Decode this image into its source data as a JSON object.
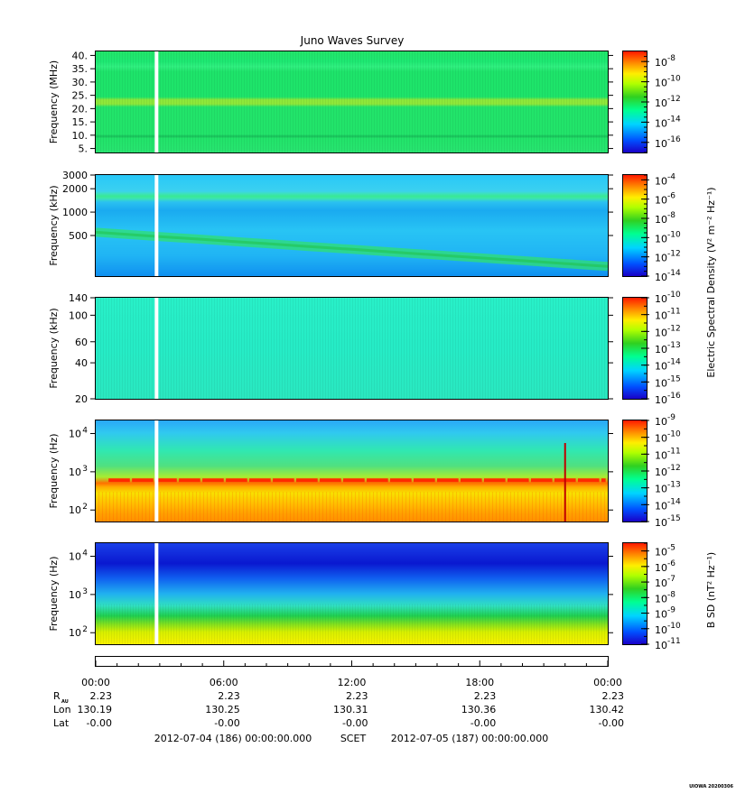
{
  "title": "Juno Waves Survey",
  "footer_mark": "UIOWA 20200306",
  "ephemeris": {
    "time_labels": [
      "00:00",
      "06:00",
      "12:00",
      "18:00",
      "00:00"
    ],
    "rows": [
      {
        "label": "R",
        "sub": "AU",
        "values": [
          "2.23",
          "2.23",
          "2.23",
          "2.23",
          "2.23"
        ]
      },
      {
        "label": "Lon",
        "sub": "",
        "values": [
          "130.19",
          "130.25",
          "130.31",
          "130.36",
          "130.42"
        ]
      },
      {
        "label": "Lat",
        "sub": "",
        "values": [
          "-0.00",
          "-0.00",
          "-0.00",
          "-0.00",
          "-0.00"
        ]
      }
    ],
    "start_date": "2012-07-04 (186) 00:00:00.000",
    "scet": "SCET",
    "end_date": "2012-07-05 (187) 00:00:00.000"
  },
  "colorbar_labels": {
    "electric": "Electric Spectral Density (V² m⁻² Hz⁻¹)",
    "magnetic": "B SD (nT² Hz⁻¹)"
  },
  "chart_data": [
    {
      "type": "heatmap",
      "ylabel": "Frequency (MHz)",
      "y_ticks": [
        "40.",
        "35.",
        "30.",
        "25.",
        "20.",
        "15.",
        "10.",
        "5."
      ],
      "y_tick_values": [
        40,
        35,
        30,
        25,
        20,
        15,
        10,
        5
      ],
      "ylim": [
        3.5,
        41.5
      ],
      "y_scale": "linear",
      "colorbar": {
        "base": "10",
        "exponents": [
          "-8",
          "-10",
          "-12",
          "-14",
          "-16"
        ],
        "range_exp": [
          -17,
          -7
        ]
      },
      "features": "uniform background with bright line near 21 MHz and faint line near 9 MHz"
    },
    {
      "type": "heatmap",
      "ylabel": "Frequency (kHz)",
      "y_ticks": [
        "3000",
        "2000",
        "1000",
        "500"
      ],
      "y_tick_values": [
        3000,
        2000,
        1000,
        500
      ],
      "ylim": [
        150,
        3000
      ],
      "y_scale": "log",
      "colorbar": {
        "base": "10",
        "exponents": [
          "-4",
          "-6",
          "-8",
          "-10",
          "-12",
          "-14"
        ],
        "range_exp": [
          -14,
          -3.5
        ]
      },
      "features": "band near 1600 kHz; emission near 550 kHz descending to ~200 kHz over the day"
    },
    {
      "type": "heatmap",
      "ylabel": "Frequency (kHz)",
      "y_ticks": [
        "140",
        "100",
        "60",
        "40",
        "20"
      ],
      "y_tick_values": [
        140,
        100,
        60,
        40,
        20
      ],
      "ylim": [
        20,
        140
      ],
      "y_scale": "log",
      "colorbar": {
        "base": "10",
        "exponents": [
          "-10",
          "-11",
          "-12",
          "-13",
          "-14",
          "-15",
          "-16"
        ],
        "range_exp": [
          -16,
          -10
        ]
      },
      "features": "uniform background"
    },
    {
      "type": "heatmap",
      "ylabel": "Frequency (Hz)",
      "y_ticks": [
        "10",
        "10",
        "10"
      ],
      "y_tick_exponents": [
        "4",
        "3",
        "2"
      ],
      "y_tick_values": [
        10000,
        1000,
        100
      ],
      "ylim": [
        50,
        22000
      ],
      "y_scale": "log",
      "colorbar": {
        "base": "10",
        "exponents": [
          "-9",
          "-10",
          "-11",
          "-12",
          "-13",
          "-14",
          "-15"
        ],
        "range_exp": [
          -15,
          -9
        ]
      },
      "features": "strong interference line near 600 Hz; intense low-frequency noise below 300 Hz; spike near 22:00"
    },
    {
      "type": "heatmap",
      "ylabel": "Frequency (Hz)",
      "y_ticks": [
        "10",
        "10",
        "10"
      ],
      "y_tick_exponents": [
        "4",
        "3",
        "2"
      ],
      "y_tick_values": [
        10000,
        1000,
        100
      ],
      "ylim": [
        50,
        22000
      ],
      "y_scale": "log",
      "colorbar": {
        "base": "10",
        "exponents": [
          "-5",
          "-6",
          "-7",
          "-8",
          "-9",
          "-10",
          "-11"
        ],
        "range_exp": [
          -11,
          -4.5
        ]
      },
      "features": "intensity decreasing with frequency; strong below 200 Hz"
    }
  ],
  "data_gap_hour": 2.85
}
